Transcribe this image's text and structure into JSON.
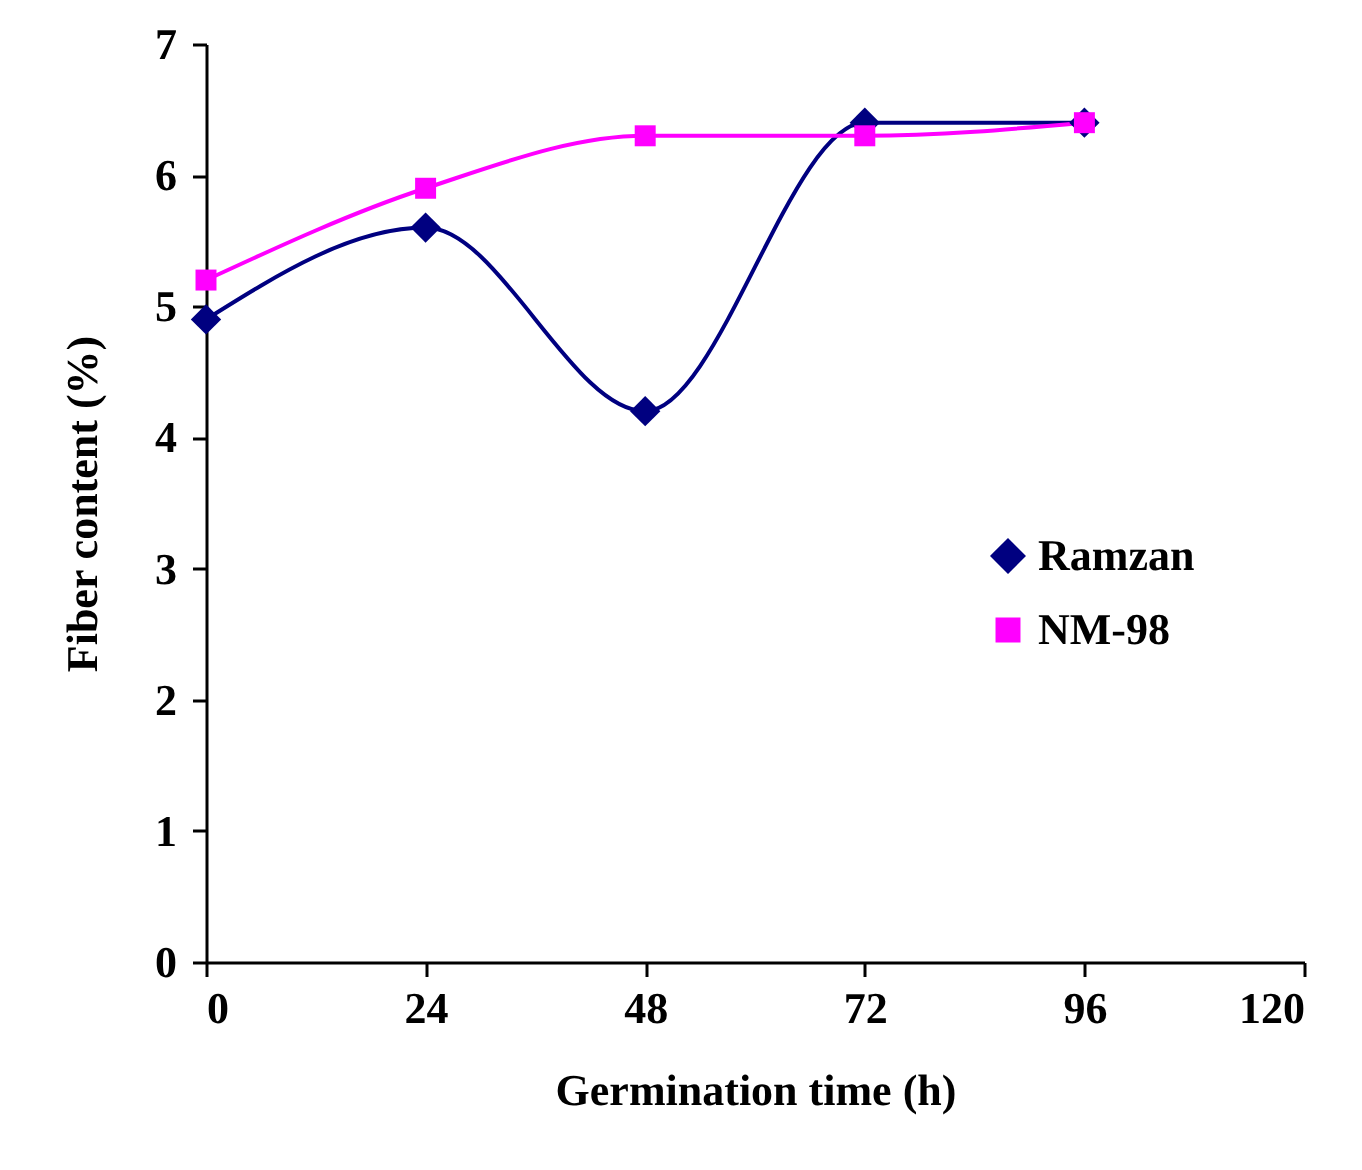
{
  "chart_data": {
    "type": "line",
    "xlabel": "Germination time (h)",
    "ylabel": "Fiber content (%)",
    "x": [
      0,
      24,
      48,
      72,
      96
    ],
    "series": [
      {
        "name": "Ramzan",
        "color": "#000080",
        "marker": "diamond",
        "values": [
          4.9,
          5.6,
          4.2,
          6.4,
          6.4
        ]
      },
      {
        "name": "NM-98",
        "color": "#ff00ff",
        "marker": "square",
        "values": [
          5.2,
          5.9,
          6.3,
          6.3,
          6.4
        ]
      }
    ],
    "xlim": [
      0,
      120
    ],
    "xticks": [
      0,
      24,
      48,
      72,
      96,
      120
    ],
    "ylim": [
      0,
      7
    ],
    "yticks": [
      0,
      1,
      2,
      3,
      4,
      5,
      6,
      7
    ],
    "grid": false,
    "legend": "right",
    "line_style": "solid"
  }
}
